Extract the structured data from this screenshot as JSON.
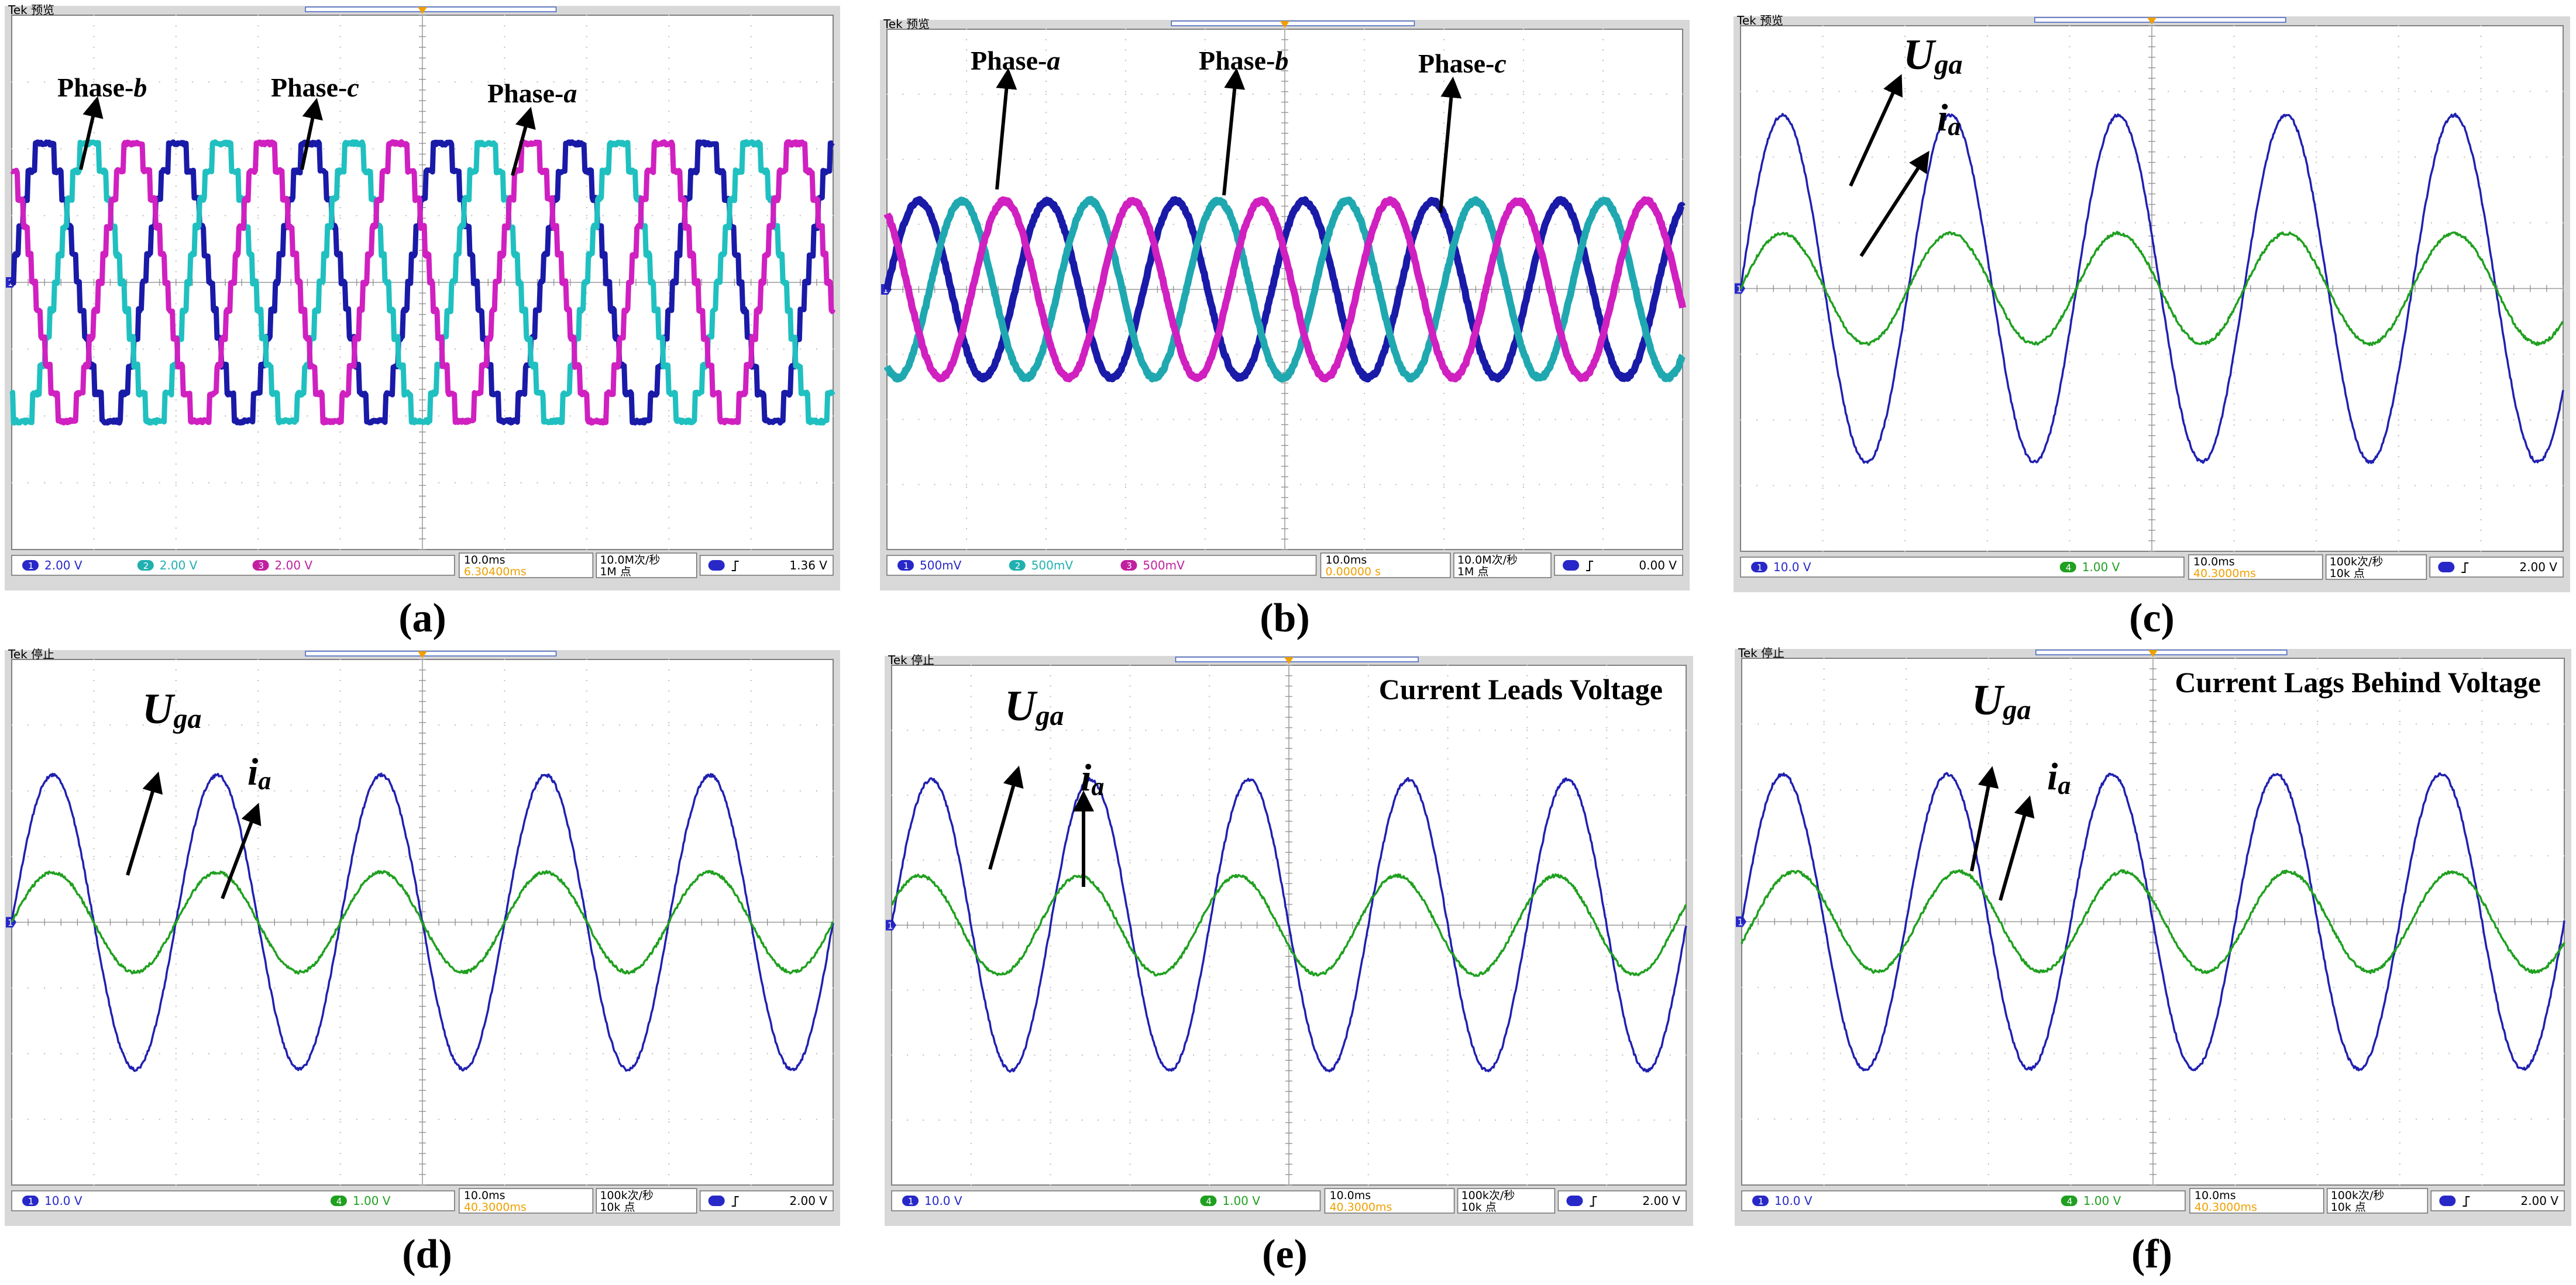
{
  "figure": {
    "panels": [
      {
        "caption": "(a)",
        "header": "Tek 预览",
        "waves": [
          {
            "name": "Phase-a",
            "color": "#1a1aa8",
            "type": "multilevel",
            "amp": 0.52,
            "phase": 0
          },
          {
            "name": "Phase-b",
            "color": "#20c0c0",
            "type": "multilevel",
            "amp": 0.52,
            "phase": -120
          },
          {
            "name": "Phase-c",
            "color": "#d020c0",
            "type": "multilevel",
            "amp": 0.52,
            "phase": 120
          }
        ],
        "cycles": 6.2,
        "ground_marker": "1",
        "labels": [
          {
            "text": "Phase-",
            "italic": "b"
          },
          {
            "text": "Phase-",
            "italic": "c"
          },
          {
            "text": "Phase-",
            "italic": "a"
          }
        ],
        "status": {
          "ch1": "2.00 V",
          "ch2": "2.00 V",
          "ch3": "2.00 V",
          "timebase": "10.0ms",
          "trig_pos": "6.30400ms",
          "rate": "10.0M次/秒",
          "points": "1M 点",
          "trig_level": "1.36 V"
        }
      },
      {
        "caption": "(b)",
        "header": "Tek 预览",
        "waves": [
          {
            "name": "Phase-a",
            "color": "#1a1aa8",
            "type": "sine",
            "amp": 0.34,
            "phase": 0
          },
          {
            "name": "Phase-b",
            "color": "#20a8b0",
            "type": "sine",
            "amp": 0.34,
            "phase": -120
          },
          {
            "name": "Phase-c",
            "color": "#d020c0",
            "type": "sine",
            "amp": 0.34,
            "phase": 120
          }
        ],
        "cycles": 6.2,
        "ground_marker": "1",
        "labels": [
          {
            "text": "Phase-",
            "italic": "a"
          },
          {
            "text": "Phase-",
            "italic": "b"
          },
          {
            "text": "Phase-",
            "italic": "c"
          }
        ],
        "status": {
          "ch1": "500mV",
          "ch2": "500mV",
          "ch3": "500mV",
          "timebase": "10.0ms",
          "trig_pos": "0.00000 s",
          "rate": "10.0M次/秒",
          "points": "1M 点",
          "trig_level": "0.00 V"
        }
      },
      {
        "caption": "(c)",
        "header": "Tek 预览",
        "waves": [
          {
            "name": "Uga",
            "color": "#2020b0",
            "type": "sine",
            "amp": 0.66,
            "phase": 0
          },
          {
            "name": "ia",
            "color": "#20a020",
            "type": "sine",
            "amp": 0.21,
            "phase": 0
          }
        ],
        "cycles": 4.9,
        "ground_marker": "1",
        "labels": [
          {
            "text": "U",
            "sub": "ga"
          },
          {
            "text": "i",
            "sub": "a"
          }
        ],
        "status": {
          "ch1": "10.0 V",
          "ch4": "1.00 V",
          "timebase": "10.0ms",
          "trig_pos": "40.3000ms",
          "rate": "100k次/秒",
          "points": "10k 点",
          "trig_level": "2.00 V"
        }
      },
      {
        "caption": "(d)",
        "header": "Tek 停止",
        "waves": [
          {
            "name": "Uga",
            "color": "#2020b0",
            "type": "sine",
            "amp": 0.56,
            "phase": 0
          },
          {
            "name": "ia",
            "color": "#20a020",
            "type": "sine",
            "amp": 0.19,
            "phase": 0
          }
        ],
        "cycles": 5.0,
        "ground_marker": "1",
        "labels": [
          {
            "text": "U",
            "sub": "ga"
          },
          {
            "text": "i",
            "sub": "a"
          }
        ],
        "status": {
          "ch1": "10.0 V",
          "ch4": "1.00 V",
          "timebase": "10.0ms",
          "trig_pos": "40.3000ms",
          "rate": "100k次/秒",
          "points": "10k 点",
          "trig_level": "2.00 V"
        }
      },
      {
        "caption": "(e)",
        "header": "Tek 停止",
        "waves": [
          {
            "name": "Uga",
            "color": "#2020b0",
            "type": "sine",
            "amp": 0.56,
            "phase": 0
          },
          {
            "name": "ia",
            "color": "#20a020",
            "type": "sine",
            "amp": 0.19,
            "phase": 25
          }
        ],
        "cycles": 5.0,
        "ground_marker": "1",
        "labels": [
          {
            "text": "U",
            "sub": "ga"
          },
          {
            "text": "i",
            "sub": "a"
          }
        ],
        "annotation": "Current Leads Voltage",
        "status": {
          "ch1": "10.0 V",
          "ch4": "1.00 V",
          "timebase": "10.0ms",
          "trig_pos": "40.3000ms",
          "rate": "100k次/秒",
          "points": "10k 点",
          "trig_level": "2.00 V"
        }
      },
      {
        "caption": "(f)",
        "header": "Tek 停止",
        "waves": [
          {
            "name": "Uga",
            "color": "#2020b0",
            "type": "sine",
            "amp": 0.56,
            "phase": 0
          },
          {
            "name": "ia",
            "color": "#20a020",
            "type": "sine",
            "amp": 0.19,
            "phase": -25
          }
        ],
        "cycles": 5.0,
        "ground_marker": "1",
        "labels": [
          {
            "text": "U",
            "sub": "ga"
          },
          {
            "text": "i",
            "sub": "a"
          }
        ],
        "annotation": "Current Lags Behind Voltage",
        "status": {
          "ch1": "10.0 V",
          "ch4": "1.00 V",
          "timebase": "10.0ms",
          "trig_pos": "40.3000ms",
          "rate": "100k次/秒",
          "points": "10k 点",
          "trig_level": "2.00 V"
        }
      }
    ]
  },
  "colors": {
    "ch1": "#2828c8",
    "ch2": "#20b0b0",
    "ch3": "#c020a0",
    "ch4": "#20a020",
    "trigger": "#f0a000",
    "frame": "#d8d8d8",
    "grid": "#bdbdbd"
  }
}
